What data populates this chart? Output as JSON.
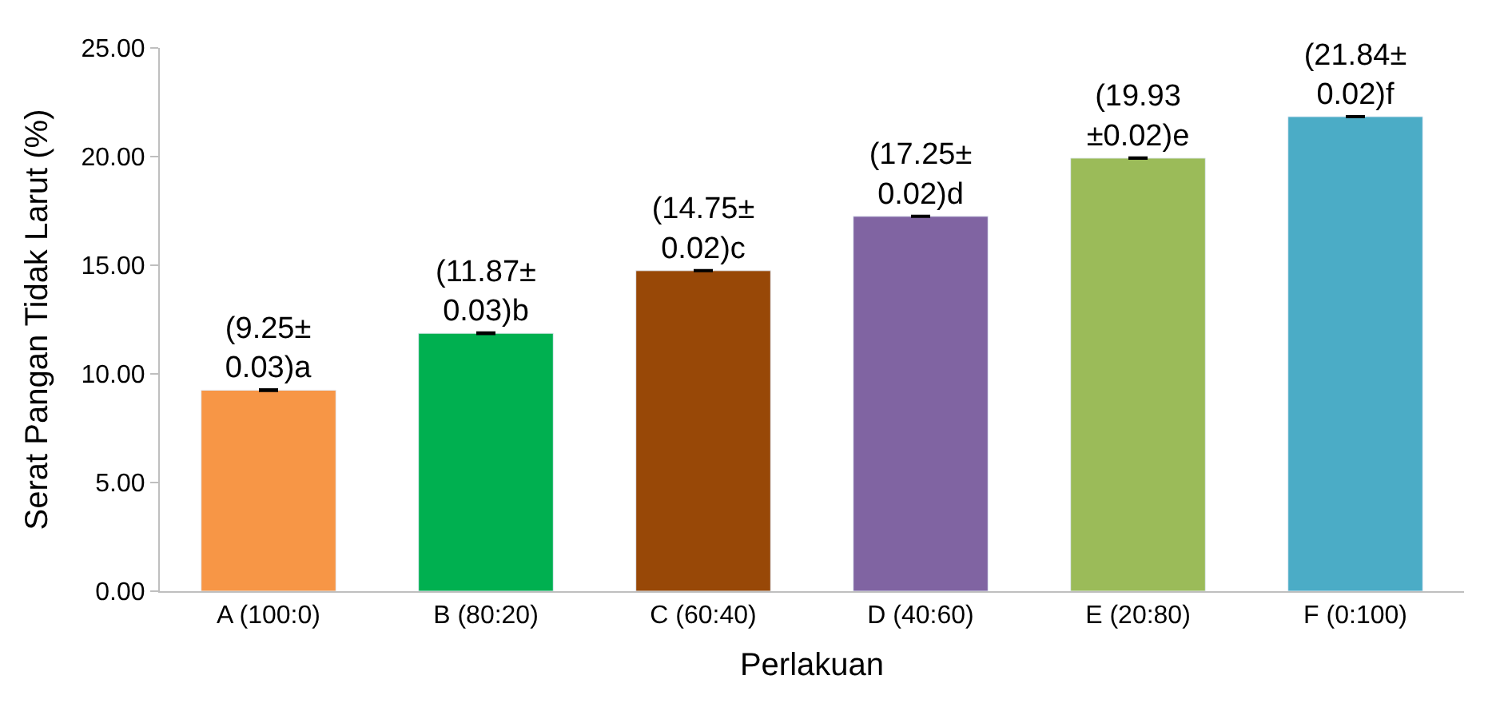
{
  "chart_data": {
    "type": "bar",
    "xlabel": "Perlakuan",
    "ylabel": "Serat Pangan Tidak Larut (%)",
    "categories": [
      "A (100:0)",
      "B (80:20)",
      "C (60:40)",
      "D (40:60)",
      "E (20:80)",
      "F (0:100)"
    ],
    "values": [
      9.25,
      11.87,
      14.75,
      17.25,
      19.93,
      21.84
    ],
    "colors": [
      "#f79646",
      "#00b050",
      "#984807",
      "#8064a2",
      "#9bbb59",
      "#4bacc6"
    ],
    "errors": [
      0.03,
      0.03,
      0.02,
      0.02,
      0.02,
      0.02
    ],
    "value_labels": [
      "(9.25±\n0.03)a",
      "(11.87±\n0.03)b",
      "(14.75±\n0.02)c",
      "(17.25±\n0.02)d",
      "(19.93\n±0.02)e",
      "(21.84±\n0.02)f"
    ],
    "ylim": [
      0,
      25
    ],
    "yticks": [
      {
        "value": 0,
        "label": "0.00"
      },
      {
        "value": 5,
        "label": "5.00"
      },
      {
        "value": 10,
        "label": "10.00"
      },
      {
        "value": 15,
        "label": "15.00"
      },
      {
        "value": 20,
        "label": "20.00"
      },
      {
        "value": 25,
        "label": "25.00"
      }
    ],
    "relative": false
  }
}
